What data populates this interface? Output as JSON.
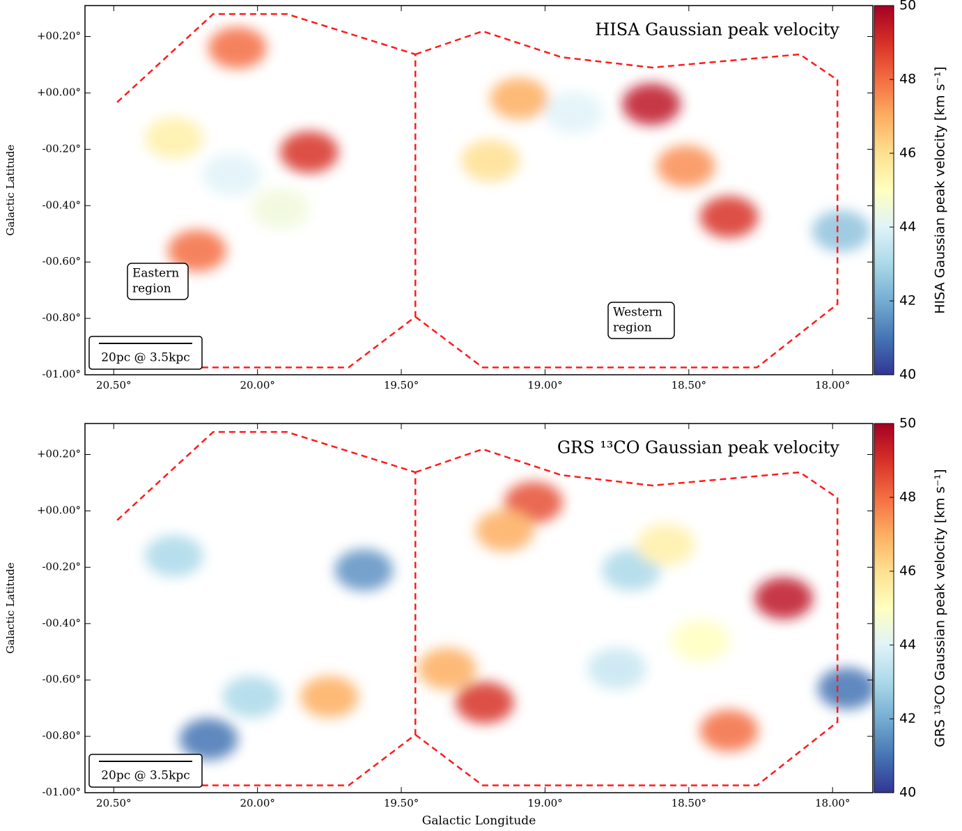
{
  "chart_data": [
    {
      "type": "heatmap",
      "title": "HISA Gaussian peak velocity",
      "ylabel": "Galactic Latitude",
      "colorbar_label": "HISA Gaussian peak velocity [km s⁻¹]",
      "xlim": [
        20.6,
        17.86
      ],
      "ylim": [
        -1.0,
        0.31
      ],
      "xticks": [
        {
          "value": 20.5,
          "label": "20.50°"
        },
        {
          "value": 20.0,
          "label": "20.00°"
        },
        {
          "value": 19.5,
          "label": "19.50°"
        },
        {
          "value": 19.0,
          "label": "19.00°"
        },
        {
          "value": 18.5,
          "label": "18.50°"
        },
        {
          "value": 18.0,
          "label": "18.00°"
        }
      ],
      "yticks": [
        {
          "value": 0.2,
          "label": "+00.20°"
        },
        {
          "value": 0.0,
          "label": "+00.00°"
        },
        {
          "value": -0.2,
          "label": "-00.20°"
        },
        {
          "value": -0.4,
          "label": "-00.40°"
        },
        {
          "value": -0.6,
          "label": "-00.60°"
        },
        {
          "value": -0.8,
          "label": "-00.80°"
        },
        {
          "value": -1.0,
          "label": "-01.00°"
        }
      ],
      "clim": [
        40,
        50
      ],
      "cticks": [
        40,
        42,
        44,
        46,
        48,
        50
      ],
      "x": [
        20.07,
        20.29,
        20.09,
        19.82,
        19.92,
        20.21,
        19.09,
        18.9,
        18.63,
        18.51,
        19.19,
        18.36,
        17.97
      ],
      "y": [
        0.16,
        -0.16,
        -0.29,
        -0.21,
        -0.41,
        -0.56,
        -0.02,
        -0.07,
        -0.04,
        -0.26,
        -0.24,
        -0.44,
        -0.49
      ],
      "values": [
        48,
        45.5,
        44,
        49,
        44.5,
        48,
        47,
        44,
        49.5,
        47.5,
        46,
        49,
        42.5
      ],
      "regions": [
        {
          "l": [
            20.488,
            20.154,
            19.898,
            19.451,
            19.451,
            19.683,
            20.488
          ],
          "b": [
            -0.033,
            0.28,
            0.28,
            0.137,
            -0.794,
            -0.974,
            -0.974
          ]
        },
        {
          "l": [
            19.451,
            19.217,
            18.944,
            18.627,
            18.114,
            17.983,
            17.983,
            18.263,
            19.217,
            19.451
          ],
          "b": [
            0.137,
            0.219,
            0.127,
            0.09,
            0.137,
            0.046,
            -0.749,
            -0.974,
            -0.974,
            -0.794
          ]
        }
      ],
      "annotations": [
        [
          "Eastern",
          "region"
        ],
        [
          "Western",
          "region"
        ]
      ],
      "scale_bar": "20pc @ 3.5kpc"
    },
    {
      "type": "heatmap",
      "title": "GRS ¹³CO Gaussian peak velocity",
      "ylabel": "Galactic Latitude",
      "xlabel": "Galactic Longitude",
      "colorbar_label": "GRS ¹³CO Gaussian peak velocity [km s⁻¹]",
      "xlim": [
        20.6,
        17.86
      ],
      "ylim": [
        -1.0,
        0.31
      ],
      "xticks": [
        {
          "value": 20.5,
          "label": "20.50°"
        },
        {
          "value": 20.0,
          "label": "20.00°"
        },
        {
          "value": 19.5,
          "label": "19.50°"
        },
        {
          "value": 19.0,
          "label": "19.00°"
        },
        {
          "value": 18.5,
          "label": "18.50°"
        },
        {
          "value": 18.0,
          "label": "18.00°"
        }
      ],
      "yticks": [
        {
          "value": 0.2,
          "label": "+00.20°"
        },
        {
          "value": 0.0,
          "label": "+00.00°"
        },
        {
          "value": -0.2,
          "label": "-00.20°"
        },
        {
          "value": -0.4,
          "label": "-00.40°"
        },
        {
          "value": -0.6,
          "label": "-00.60°"
        },
        {
          "value": -0.8,
          "label": "-00.80°"
        },
        {
          "value": -1.0,
          "label": "-01.00°"
        }
      ],
      "clim": [
        40,
        50
      ],
      "cticks": [
        40,
        42,
        44,
        46,
        48,
        50
      ],
      "x": [
        19.75,
        20.02,
        20.17,
        19.63,
        20.29,
        19.04,
        19.14,
        18.7,
        18.58,
        18.17,
        18.46,
        18.36,
        19.21,
        17.95,
        19.34,
        18.75
      ],
      "y": [
        -0.66,
        -0.66,
        -0.81,
        -0.21,
        -0.16,
        0.03,
        -0.07,
        -0.21,
        -0.12,
        -0.31,
        -0.46,
        -0.78,
        -0.68,
        -0.63,
        -0.56,
        -0.56
      ],
      "values": [
        47,
        43,
        41,
        41.5,
        43,
        48.5,
        47,
        43,
        45.5,
        49.5,
        45,
        48,
        49,
        41,
        47,
        43.5
      ],
      "regions": [
        {
          "l": [
            20.488,
            20.154,
            19.898,
            19.451,
            19.451,
            19.683,
            20.488
          ],
          "b": [
            -0.033,
            0.28,
            0.28,
            0.137,
            -0.794,
            -0.974,
            -0.974
          ]
        },
        {
          "l": [
            19.451,
            19.217,
            18.944,
            18.627,
            18.114,
            17.983,
            17.983,
            18.263,
            19.217,
            19.451
          ],
          "b": [
            0.137,
            0.219,
            0.127,
            0.09,
            0.137,
            0.046,
            -0.749,
            -0.974,
            -0.974,
            -0.794
          ]
        }
      ],
      "scale_bar": "20pc @ 3.5kpc"
    }
  ]
}
